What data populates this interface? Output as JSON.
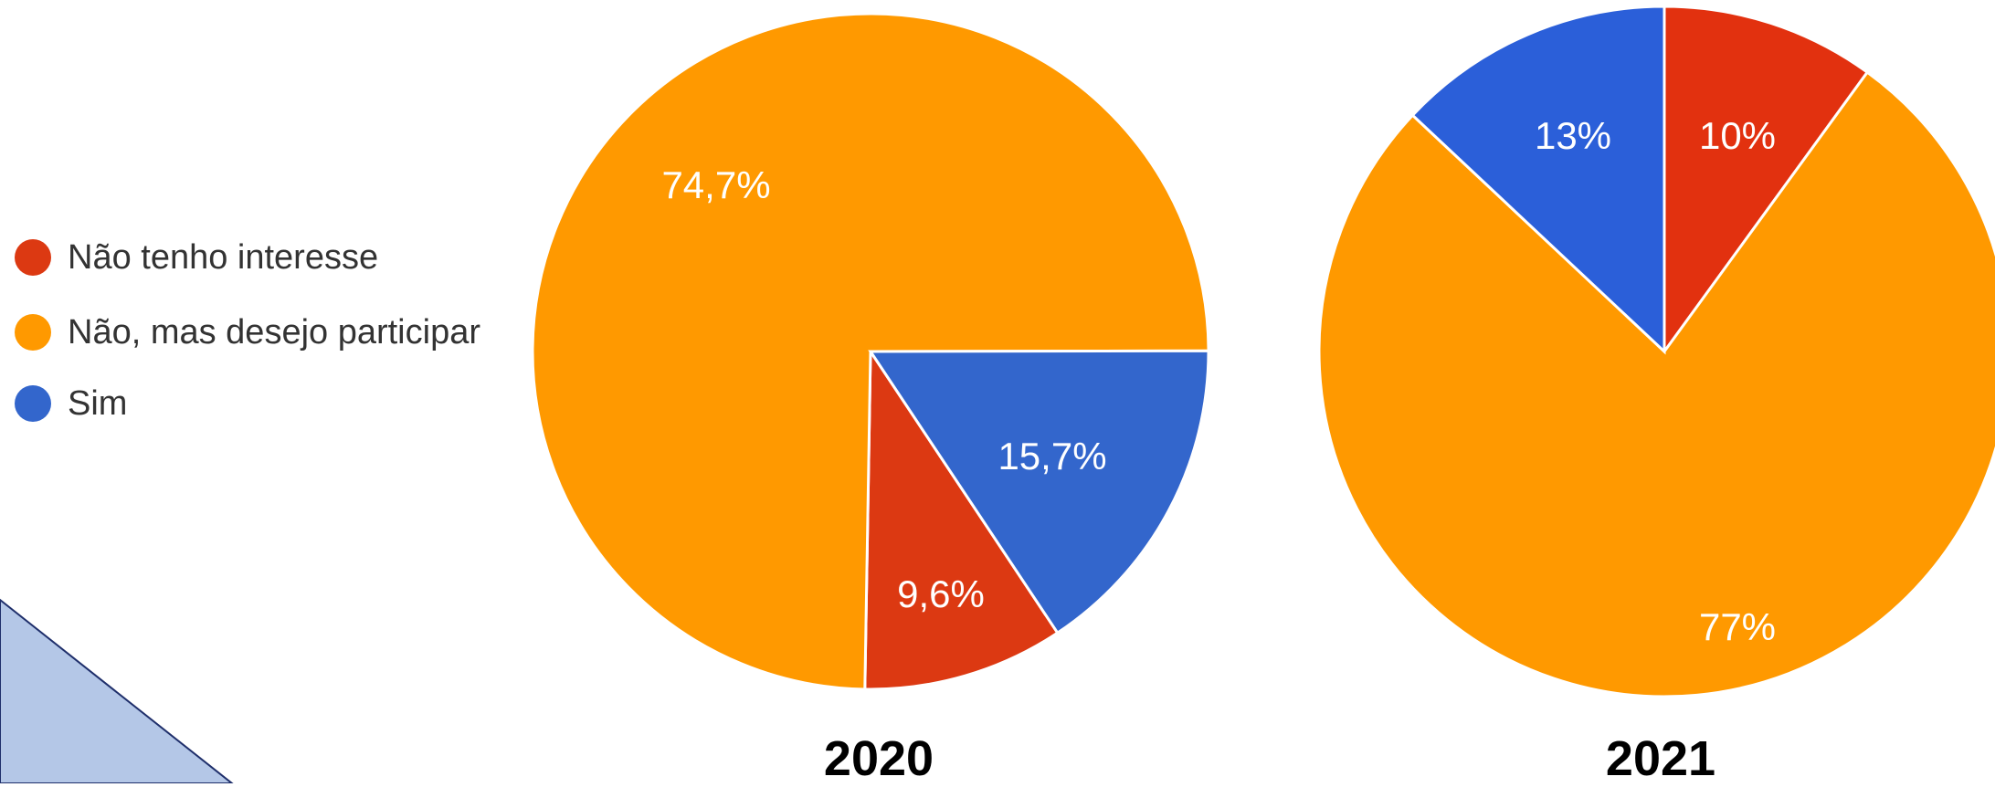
{
  "legend": [
    {
      "label": "Não tenho interesse",
      "color": "#dc3912"
    },
    {
      "label": "Não, mas desejo participar",
      "color": "#ff9900"
    },
    {
      "label": "Sim",
      "color": "#3366cc"
    }
  ],
  "decoration_color": "#b4c7e7",
  "chart_data": [
    {
      "type": "pie",
      "title": "2020",
      "slices": [
        {
          "label": "Não tenho interesse",
          "value": 9.6,
          "value_label": "9,6%",
          "color": "#dc3912"
        },
        {
          "label": "Não, mas desejo participar",
          "value": 74.7,
          "value_label": "74,7%",
          "color": "#ff9900"
        },
        {
          "label": "Sim",
          "value": 15.7,
          "value_label": "15,7%",
          "color": "#3366cc"
        }
      ]
    },
    {
      "type": "pie",
      "title": "2021",
      "slices": [
        {
          "label": "Não tenho interesse",
          "value": 10,
          "value_label": "10%",
          "color": "#e2310f"
        },
        {
          "label": "Não, mas desejo participar",
          "value": 77,
          "value_label": "77%",
          "color": "#ff9900"
        },
        {
          "label": "Sim",
          "value": 13,
          "value_label": "13%",
          "color": "#2b5fd9"
        }
      ]
    }
  ]
}
